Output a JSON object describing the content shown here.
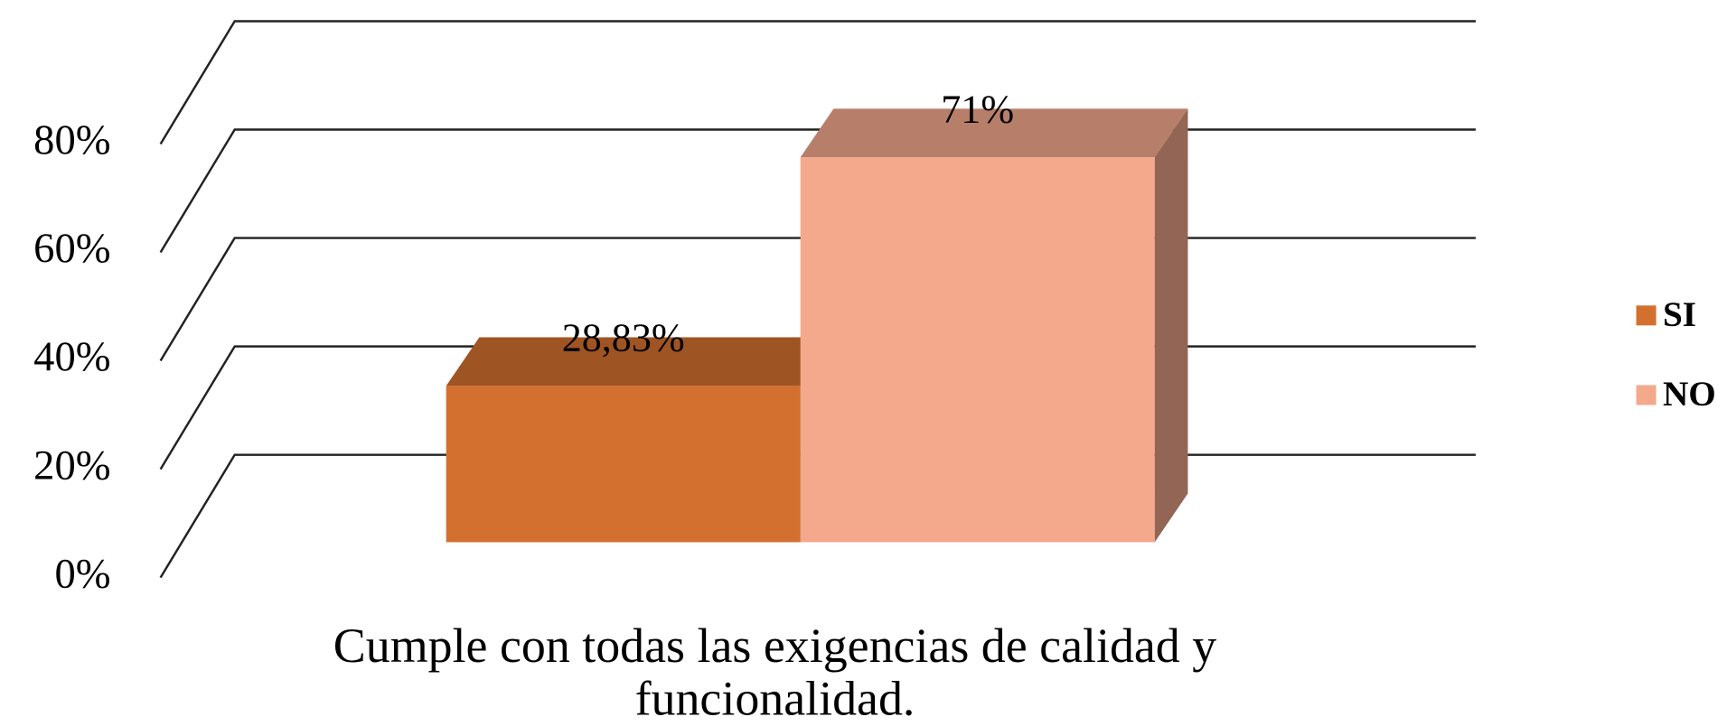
{
  "chart_data": {
    "type": "bar3d",
    "categories": [
      "Cumple con todas las exigencias de calidad y funcionalidad."
    ],
    "series": [
      {
        "name": "SI",
        "color": "#d4702f",
        "values": [
          28.83
        ],
        "value_labels": [
          "28,83%"
        ]
      },
      {
        "name": "NO",
        "color": "#f4a98c",
        "values": [
          71
        ],
        "value_labels": [
          "71%"
        ]
      }
    ],
    "ylim": [
      0,
      80
    ],
    "yticks": [
      {
        "value": 0,
        "label": "0%"
      },
      {
        "value": 20,
        "label": "20%"
      },
      {
        "value": 40,
        "label": "40%"
      },
      {
        "value": 60,
        "label": "60%"
      },
      {
        "value": 80,
        "label": "80%"
      }
    ],
    "grid": true,
    "legend": "right"
  }
}
